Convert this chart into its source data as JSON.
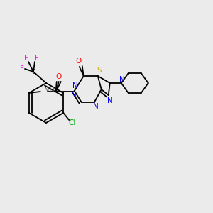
{
  "bg_color": "#ebebeb",
  "figsize": [
    3.0,
    3.0
  ],
  "dpi": 100,
  "bond_color": "#000000",
  "bond_lw": 1.3,
  "atom_colors": {
    "N": "#0000ff",
    "O": "#ff0000",
    "S": "#ccaa00",
    "Cl": "#00aa00",
    "F": "#ff00ff",
    "H": "#555555",
    "C": "#000000"
  }
}
